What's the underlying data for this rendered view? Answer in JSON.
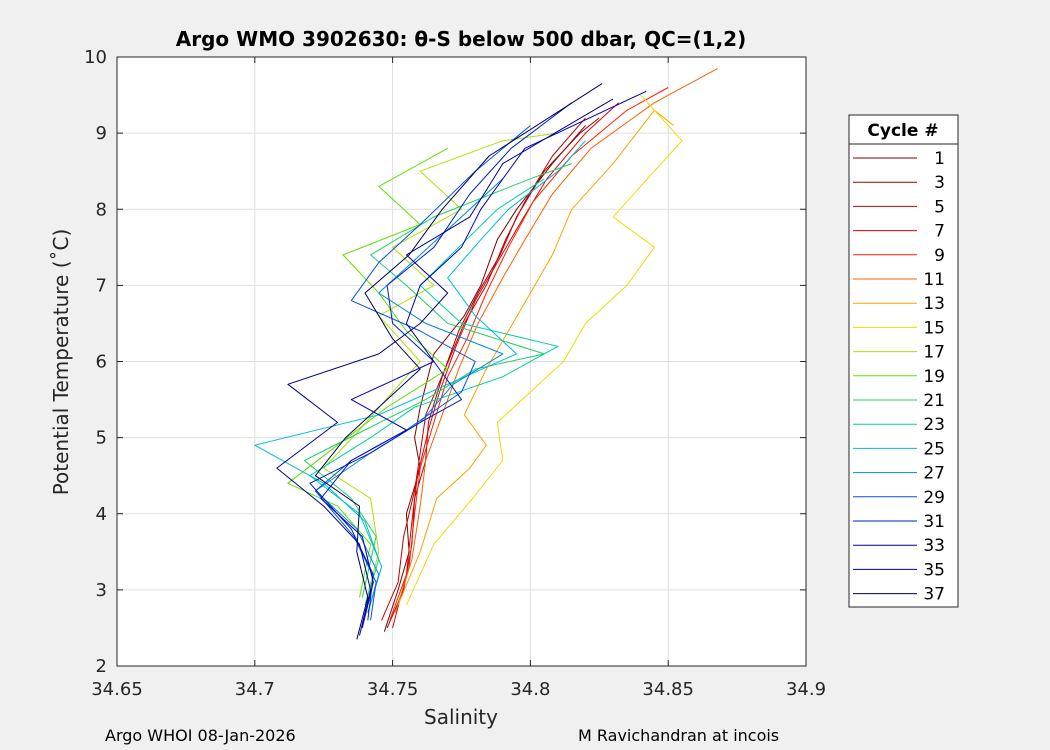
{
  "chart_data": {
    "type": "line",
    "title": "Argo WMO 3902630: θ-S below 500 dbar,  QC=(1,2)",
    "xlabel": "Salinity",
    "ylabel": "Potential Temperature (˚C)",
    "xlim": [
      34.65,
      34.9
    ],
    "ylim": [
      2,
      10
    ],
    "xticks": [
      "34.65",
      "34.7",
      "34.75",
      "34.8",
      "34.85",
      "34.9"
    ],
    "yticks": [
      "2",
      "3",
      "4",
      "5",
      "6",
      "7",
      "8",
      "9",
      "10"
    ],
    "grid": true,
    "legend": {
      "title": "Cycle #",
      "position": "right"
    },
    "series": [
      {
        "name": "1",
        "color": "#800000",
        "points": [
          [
            34.747,
            2.45
          ],
          [
            34.752,
            3.0
          ],
          [
            34.756,
            3.5
          ],
          [
            34.755,
            4.0
          ],
          [
            34.76,
            4.6
          ],
          [
            34.758,
            5.0
          ],
          [
            34.76,
            5.4
          ],
          [
            34.765,
            6.1
          ],
          [
            34.776,
            6.6
          ],
          [
            34.782,
            7.0
          ],
          [
            34.788,
            7.6
          ],
          [
            34.795,
            8.0
          ],
          [
            34.808,
            8.6
          ],
          [
            34.82,
            9.1
          ]
        ]
      },
      {
        "name": "3",
        "color": "#a00000",
        "points": [
          [
            34.748,
            2.5
          ],
          [
            34.754,
            3.0
          ],
          [
            34.757,
            3.6
          ],
          [
            34.758,
            4.2
          ],
          [
            34.762,
            4.7
          ],
          [
            34.763,
            5.2
          ],
          [
            34.768,
            5.8
          ],
          [
            34.774,
            6.4
          ],
          [
            34.781,
            6.9
          ],
          [
            34.789,
            7.4
          ],
          [
            34.795,
            7.9
          ],
          [
            34.805,
            8.5
          ],
          [
            34.818,
            9.0
          ],
          [
            34.825,
            9.2
          ]
        ]
      },
      {
        "name": "5",
        "color": "#c00000",
        "points": [
          [
            34.746,
            2.6
          ],
          [
            34.752,
            3.1
          ],
          [
            34.754,
            3.7
          ],
          [
            34.758,
            4.3
          ],
          [
            34.76,
            4.8
          ],
          [
            34.762,
            5.3
          ],
          [
            34.769,
            5.9
          ],
          [
            34.776,
            6.5
          ],
          [
            34.784,
            7.0
          ],
          [
            34.791,
            7.6
          ],
          [
            34.798,
            8.1
          ],
          [
            34.808,
            8.7
          ],
          [
            34.82,
            9.2
          ]
        ]
      },
      {
        "name": "7",
        "color": "#e00000",
        "points": [
          [
            34.75,
            2.5
          ],
          [
            34.755,
            3.2
          ],
          [
            34.757,
            3.9
          ],
          [
            34.759,
            4.5
          ],
          [
            34.763,
            5.1
          ],
          [
            34.767,
            5.6
          ],
          [
            34.773,
            6.2
          ],
          [
            34.78,
            6.8
          ],
          [
            34.788,
            7.3
          ],
          [
            34.796,
            7.8
          ],
          [
            34.806,
            8.4
          ],
          [
            34.82,
            9.0
          ],
          [
            34.832,
            9.4
          ]
        ]
      },
      {
        "name": "9",
        "color": "#ff2000",
        "points": [
          [
            34.749,
            2.6
          ],
          [
            34.756,
            3.3
          ],
          [
            34.758,
            4.0
          ],
          [
            34.76,
            4.6
          ],
          [
            34.765,
            5.2
          ],
          [
            34.77,
            5.8
          ],
          [
            34.777,
            6.3
          ],
          [
            34.784,
            6.9
          ],
          [
            34.792,
            7.5
          ],
          [
            34.801,
            8.1
          ],
          [
            34.815,
            8.7
          ],
          [
            34.835,
            9.3
          ],
          [
            34.85,
            9.6
          ]
        ]
      },
      {
        "name": "11",
        "color": "#ff6000",
        "points": [
          [
            34.751,
            2.7
          ],
          [
            34.757,
            3.4
          ],
          [
            34.76,
            4.1
          ],
          [
            34.762,
            4.7
          ],
          [
            34.768,
            5.3
          ],
          [
            34.774,
            5.9
          ],
          [
            34.781,
            6.5
          ],
          [
            34.79,
            7.1
          ],
          [
            34.798,
            7.6
          ],
          [
            34.808,
            8.2
          ],
          [
            34.822,
            8.8
          ],
          [
            34.845,
            9.4
          ],
          [
            34.868,
            9.85
          ]
        ]
      },
      {
        "name": "13",
        "color": "#ffa000",
        "points": [
          [
            34.752,
            2.8
          ],
          [
            34.76,
            3.5
          ],
          [
            34.766,
            4.2
          ],
          [
            34.778,
            4.6
          ],
          [
            34.784,
            4.9
          ],
          [
            34.776,
            5.3
          ],
          [
            34.784,
            5.9
          ],
          [
            34.792,
            6.4
          ],
          [
            34.8,
            6.9
          ],
          [
            34.808,
            7.4
          ],
          [
            34.815,
            8.0
          ],
          [
            34.83,
            8.6
          ],
          [
            34.845,
            9.3
          ],
          [
            34.852,
            9.1
          ]
        ]
      },
      {
        "name": "15",
        "color": "#e8e000",
        "points": [
          [
            34.755,
            2.8
          ],
          [
            34.765,
            3.6
          ],
          [
            34.779,
            4.2
          ],
          [
            34.79,
            4.7
          ],
          [
            34.788,
            5.2
          ],
          [
            34.8,
            5.6
          ],
          [
            34.812,
            6.0
          ],
          [
            34.82,
            6.5
          ],
          [
            34.835,
            7.0
          ],
          [
            34.845,
            7.5
          ],
          [
            34.83,
            7.9
          ],
          [
            34.845,
            8.5
          ],
          [
            34.855,
            8.9
          ],
          [
            34.84,
            9.5
          ]
        ]
      },
      {
        "name": "17",
        "color": "#b0e000",
        "points": [
          [
            34.74,
            2.8
          ],
          [
            34.745,
            3.5
          ],
          [
            34.742,
            4.2
          ],
          [
            34.725,
            4.6
          ],
          [
            34.738,
            5.1
          ],
          [
            34.75,
            5.6
          ],
          [
            34.76,
            6.0
          ],
          [
            34.745,
            6.6
          ],
          [
            34.765,
            7.0
          ],
          [
            34.75,
            7.5
          ],
          [
            34.775,
            8.0
          ],
          [
            34.76,
            8.5
          ],
          [
            34.79,
            8.9
          ],
          [
            34.81,
            9.0
          ]
        ]
      },
      {
        "name": "19",
        "color": "#60e000",
        "points": [
          [
            34.738,
            2.9
          ],
          [
            34.742,
            3.6
          ],
          [
            34.73,
            4.1
          ],
          [
            34.712,
            4.4
          ],
          [
            34.73,
            4.9
          ],
          [
            34.748,
            5.4
          ],
          [
            34.77,
            5.9
          ],
          [
            34.755,
            6.4
          ],
          [
            34.745,
            6.9
          ],
          [
            34.732,
            7.4
          ],
          [
            34.76,
            7.8
          ],
          [
            34.745,
            8.3
          ],
          [
            34.77,
            8.8
          ]
        ]
      },
      {
        "name": "21",
        "color": "#20d060",
        "points": [
          [
            34.739,
            2.9
          ],
          [
            34.744,
            3.7
          ],
          [
            34.735,
            4.2
          ],
          [
            34.718,
            4.7
          ],
          [
            34.74,
            5.1
          ],
          [
            34.762,
            5.5
          ],
          [
            34.78,
            5.9
          ],
          [
            34.805,
            6.1
          ],
          [
            34.77,
            6.5
          ],
          [
            34.755,
            7.0
          ],
          [
            34.742,
            7.4
          ],
          [
            34.765,
            7.9
          ],
          [
            34.8,
            8.4
          ],
          [
            34.815,
            8.6
          ]
        ]
      },
      {
        "name": "23",
        "color": "#00d0a0",
        "points": [
          [
            34.74,
            2.8
          ],
          [
            34.745,
            3.4
          ],
          [
            34.738,
            4.0
          ],
          [
            34.72,
            4.5
          ],
          [
            34.742,
            5.0
          ],
          [
            34.758,
            5.4
          ],
          [
            34.79,
            5.8
          ],
          [
            34.81,
            6.2
          ],
          [
            34.775,
            6.5
          ],
          [
            34.76,
            7.0
          ],
          [
            34.774,
            7.5
          ],
          [
            34.788,
            8.0
          ],
          [
            34.805,
            8.4
          ]
        ]
      },
      {
        "name": "25",
        "color": "#00b8e0",
        "points": [
          [
            34.741,
            2.7
          ],
          [
            34.746,
            3.3
          ],
          [
            34.74,
            3.9
          ],
          [
            34.725,
            4.4
          ],
          [
            34.7,
            4.9
          ],
          [
            34.745,
            5.3
          ],
          [
            34.77,
            5.7
          ],
          [
            34.795,
            6.1
          ],
          [
            34.78,
            6.6
          ],
          [
            34.77,
            7.1
          ],
          [
            34.782,
            7.6
          ],
          [
            34.792,
            8.0
          ],
          [
            34.81,
            8.5
          ],
          [
            34.82,
            8.9
          ]
        ]
      },
      {
        "name": "27",
        "color": "#0088e0",
        "points": [
          [
            34.741,
            2.7
          ],
          [
            34.745,
            3.2
          ],
          [
            34.737,
            3.8
          ],
          [
            34.722,
            4.3
          ],
          [
            34.742,
            4.8
          ],
          [
            34.76,
            5.2
          ],
          [
            34.772,
            5.7
          ],
          [
            34.79,
            6.1
          ],
          [
            34.762,
            6.5
          ],
          [
            34.745,
            6.9
          ],
          [
            34.76,
            7.4
          ],
          [
            34.775,
            7.9
          ],
          [
            34.79,
            8.4
          ]
        ]
      },
      {
        "name": "29",
        "color": "#0050e0",
        "points": [
          [
            34.742,
            2.6
          ],
          [
            34.744,
            3.1
          ],
          [
            34.736,
            3.7
          ],
          [
            34.722,
            4.3
          ],
          [
            34.735,
            4.7
          ],
          [
            34.755,
            5.1
          ],
          [
            34.775,
            5.6
          ],
          [
            34.78,
            6.0
          ],
          [
            34.76,
            6.4
          ],
          [
            34.735,
            6.8
          ],
          [
            34.745,
            7.3
          ],
          [
            34.76,
            7.8
          ],
          [
            34.78,
            8.5
          ],
          [
            34.8,
            9.1
          ]
        ]
      },
      {
        "name": "31",
        "color": "#0020c0",
        "points": [
          [
            34.741,
            2.6
          ],
          [
            34.743,
            3.2
          ],
          [
            34.735,
            3.8
          ],
          [
            34.72,
            4.4
          ],
          [
            34.742,
            4.8
          ],
          [
            34.76,
            5.2
          ],
          [
            34.775,
            5.5
          ],
          [
            34.765,
            6.0
          ],
          [
            34.75,
            6.5
          ],
          [
            34.748,
            7.0
          ],
          [
            34.765,
            7.5
          ],
          [
            34.778,
            8.2
          ],
          [
            34.793,
            8.8
          ],
          [
            34.815,
            9.4
          ]
        ]
      },
      {
        "name": "33",
        "color": "#000090",
        "points": [
          [
            34.738,
            2.4
          ],
          [
            34.742,
            3.0
          ],
          [
            34.738,
            3.6
          ],
          [
            34.725,
            4.1
          ],
          [
            34.708,
            4.6
          ],
          [
            34.73,
            5.2
          ],
          [
            34.712,
            5.7
          ],
          [
            34.745,
            6.1
          ],
          [
            34.76,
            6.5
          ],
          [
            34.77,
            6.9
          ],
          [
            34.755,
            7.4
          ],
          [
            34.778,
            7.9
          ],
          [
            34.79,
            8.6
          ],
          [
            34.83,
            9.45
          ]
        ]
      },
      {
        "name": "35",
        "color": "#0000c0",
        "points": [
          [
            34.739,
            2.5
          ],
          [
            34.743,
            3.1
          ],
          [
            34.739,
            3.7
          ],
          [
            34.724,
            4.2
          ],
          [
            34.735,
            4.7
          ],
          [
            34.755,
            5.1
          ],
          [
            34.735,
            5.5
          ],
          [
            34.765,
            6.0
          ],
          [
            34.755,
            6.5
          ],
          [
            34.76,
            7.0
          ],
          [
            34.775,
            7.5
          ],
          [
            34.782,
            8.0
          ],
          [
            34.798,
            8.8
          ],
          [
            34.842,
            9.55
          ]
        ]
      },
      {
        "name": "37",
        "color": "#000060",
        "points": [
          [
            34.737,
            2.35
          ],
          [
            34.741,
            2.9
          ],
          [
            34.737,
            3.5
          ],
          [
            34.738,
            4.1
          ],
          [
            34.722,
            4.5
          ],
          [
            34.733,
            5.0
          ],
          [
            34.745,
            5.4
          ],
          [
            34.76,
            5.9
          ],
          [
            34.75,
            6.3
          ],
          [
            34.74,
            6.9
          ],
          [
            34.756,
            7.4
          ],
          [
            34.768,
            8.0
          ],
          [
            34.785,
            8.7
          ],
          [
            34.826,
            9.65
          ]
        ]
      }
    ]
  },
  "footer": {
    "left": "Argo WHOI 08-Jan-2026",
    "right": "M Ravichandran at incois"
  }
}
